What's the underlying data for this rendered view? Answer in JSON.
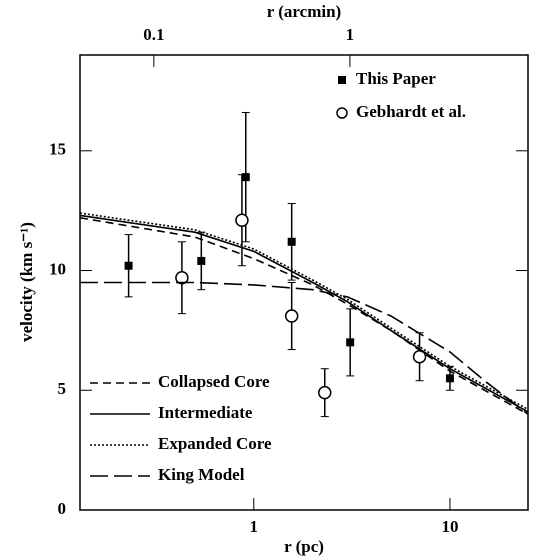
{
  "chart_data": {
    "type": "line",
    "xlabel": "r (pc)",
    "ylabel": "velocity (km s⁻¹)",
    "x2label": "r (arcmin)",
    "xscale": "log",
    "xlim": [
      0.13,
      25
    ],
    "xticks": [
      1,
      10
    ],
    "x2scale": "log",
    "x2lim": [
      0.042,
      8.1
    ],
    "x2ticks": [
      0.1,
      1
    ],
    "ylim": [
      0,
      19
    ],
    "yticks": [
      0,
      5,
      10,
      15
    ],
    "series": [
      {
        "name": "This Paper",
        "color": "#000000",
        "marker": "square",
        "x": [
          0.23,
          0.54,
          0.91,
          1.56,
          3.1,
          10
        ],
        "values": [
          10.2,
          10.4,
          13.9,
          11.2,
          7.0,
          5.5
        ],
        "errors": [
          1.3,
          1.2,
          2.7,
          1.6,
          1.4,
          0.5
        ]
      },
      {
        "name": "Gebhardt et al.",
        "color": "#000000",
        "marker": "circle",
        "x": [
          0.43,
          0.87,
          1.56,
          2.3,
          7.0
        ],
        "values": [
          9.7,
          12.1,
          8.1,
          4.9,
          6.4
        ],
        "errors": [
          1.5,
          1.9,
          1.4,
          1.0,
          1.0
        ]
      },
      {
        "name": "Collapsed Core",
        "color": "#000000",
        "linestyle": "dashed",
        "x": [
          0.13,
          0.5,
          1,
          2,
          3,
          5,
          10,
          25
        ],
        "values": [
          12.2,
          11.4,
          10.5,
          9.4,
          8.6,
          7.5,
          5.8,
          4.0
        ]
      },
      {
        "name": "Intermediate",
        "color": "#000000",
        "linestyle": "solid",
        "x": [
          0.13,
          0.5,
          1,
          2,
          3,
          5,
          10,
          25
        ],
        "values": [
          12.3,
          11.6,
          10.8,
          9.5,
          8.7,
          7.5,
          5.9,
          4.1
        ]
      },
      {
        "name": "Expanded Core",
        "color": "#000000",
        "linestyle": "dotted",
        "x": [
          0.13,
          0.5,
          1,
          2,
          3,
          5,
          10,
          25
        ],
        "values": [
          12.4,
          11.7,
          10.9,
          9.6,
          8.8,
          7.6,
          6.0,
          4.2
        ]
      },
      {
        "name": "King Model",
        "color": "#000000",
        "linestyle": "longdash",
        "x": [
          0.13,
          0.5,
          1,
          2,
          3,
          5,
          10,
          15,
          25
        ],
        "values": [
          9.5,
          9.5,
          9.4,
          9.2,
          8.9,
          8.1,
          6.6,
          5.4,
          4.0
        ]
      }
    ]
  }
}
